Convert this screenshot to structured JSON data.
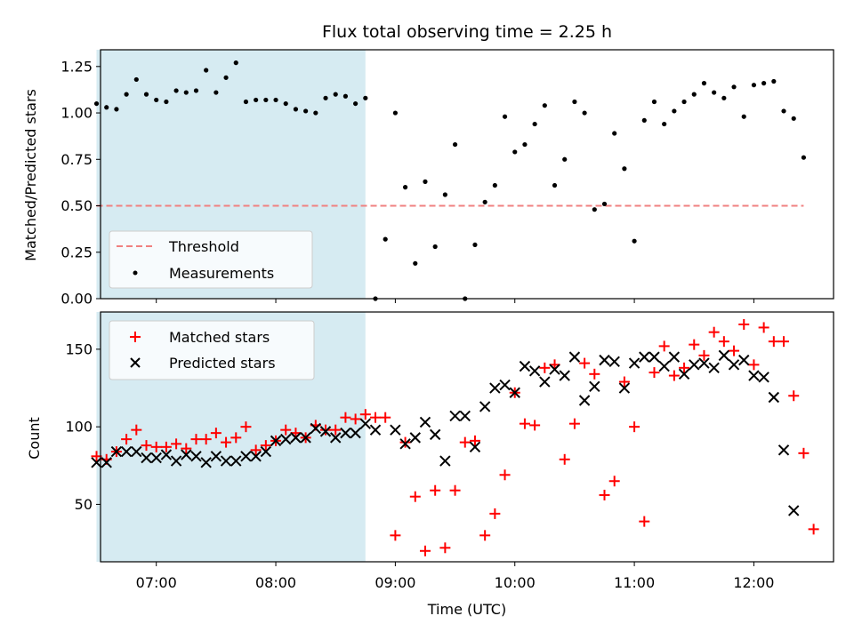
{
  "chart_data": [
    {
      "type": "scatter",
      "title": "Flux total observing time = 2.25 h",
      "xlabel": "",
      "ylabel": "Matched/Predicted stars",
      "xlim": [
        "06:32",
        "12:40"
      ],
      "ylim": [
        0,
        1.34
      ],
      "yticks": [
        "0.00",
        "0.25",
        "0.50",
        "0.75",
        "1.00",
        "1.25"
      ],
      "shaded_region": [
        "06:30",
        "08:45"
      ],
      "threshold": 0.5,
      "legend_position": "lower-left",
      "legend": [
        {
          "label": "Threshold",
          "style": "dashed-line",
          "color": "#f08080"
        },
        {
          "label": "Measurements",
          "style": "dot",
          "color": "#000000"
        }
      ],
      "series": [
        {
          "name": "Measurements",
          "points": [
            [
              "06:30",
              1.05
            ],
            [
              "06:35",
              1.03
            ],
            [
              "06:40",
              1.02
            ],
            [
              "06:45",
              1.1
            ],
            [
              "06:50",
              1.18
            ],
            [
              "06:55",
              1.1
            ],
            [
              "07:00",
              1.07
            ],
            [
              "07:05",
              1.06
            ],
            [
              "07:10",
              1.12
            ],
            [
              "07:15",
              1.11
            ],
            [
              "07:20",
              1.12
            ],
            [
              "07:25",
              1.23
            ],
            [
              "07:30",
              1.11
            ],
            [
              "07:35",
              1.19
            ],
            [
              "07:40",
              1.27
            ],
            [
              "07:45",
              1.06
            ],
            [
              "07:50",
              1.07
            ],
            [
              "07:55",
              1.07
            ],
            [
              "08:00",
              1.07
            ],
            [
              "08:05",
              1.05
            ],
            [
              "08:10",
              1.02
            ],
            [
              "08:15",
              1.01
            ],
            [
              "08:20",
              1.0
            ],
            [
              "08:25",
              1.08
            ],
            [
              "08:30",
              1.1
            ],
            [
              "08:35",
              1.09
            ],
            [
              "08:40",
              1.05
            ],
            [
              "08:45",
              1.08
            ],
            [
              "08:50",
              0.0
            ],
            [
              "08:55",
              0.32
            ],
            [
              "09:00",
              1.0
            ],
            [
              "09:05",
              0.6
            ],
            [
              "09:10",
              0.19
            ],
            [
              "09:15",
              0.63
            ],
            [
              "09:20",
              0.28
            ],
            [
              "09:25",
              0.56
            ],
            [
              "09:30",
              0.83
            ],
            [
              "09:35",
              0.0
            ],
            [
              "09:40",
              0.29
            ],
            [
              "09:45",
              0.52
            ],
            [
              "09:50",
              0.61
            ],
            [
              "09:55",
              0.98
            ],
            [
              "10:00",
              0.79
            ],
            [
              "10:05",
              0.83
            ],
            [
              "10:10",
              0.94
            ],
            [
              "10:15",
              1.04
            ],
            [
              "10:20",
              0.61
            ],
            [
              "10:25",
              0.75
            ],
            [
              "10:30",
              1.06
            ],
            [
              "10:35",
              1.0
            ],
            [
              "10:40",
              0.48
            ],
            [
              "10:45",
              0.51
            ],
            [
              "10:50",
              0.89
            ],
            [
              "10:55",
              0.7
            ],
            [
              "11:00",
              0.31
            ],
            [
              "11:05",
              0.96
            ],
            [
              "11:10",
              1.06
            ],
            [
              "11:15",
              0.94
            ],
            [
              "11:20",
              1.01
            ],
            [
              "11:25",
              1.06
            ],
            [
              "11:30",
              1.1
            ],
            [
              "11:35",
              1.16
            ],
            [
              "11:40",
              1.11
            ],
            [
              "11:45",
              1.08
            ],
            [
              "11:50",
              1.14
            ],
            [
              "11:55",
              0.98
            ],
            [
              "12:00",
              1.15
            ],
            [
              "12:05",
              1.16
            ],
            [
              "12:10",
              1.17
            ],
            [
              "12:15",
              1.01
            ],
            [
              "12:20",
              0.97
            ],
            [
              "12:25",
              0.76
            ]
          ]
        }
      ]
    },
    {
      "type": "scatter",
      "title": "",
      "xlabel": "Time (UTC)",
      "ylabel": "Count",
      "xlim": [
        "06:32",
        "12:40"
      ],
      "ylim": [
        13,
        174
      ],
      "xticks": [
        "07:00",
        "08:00",
        "09:00",
        "10:00",
        "11:00",
        "12:00"
      ],
      "yticks": [
        "50",
        "100",
        "150"
      ],
      "shaded_region": [
        "06:30",
        "08:45"
      ],
      "legend_position": "upper-left",
      "legend": [
        {
          "label": "Matched stars",
          "marker": "plus",
          "color": "#ff0000"
        },
        {
          "label": "Predicted stars",
          "marker": "x",
          "color": "#000000"
        }
      ],
      "series": [
        {
          "name": "Matched stars",
          "marker": "plus",
          "color": "#ff0000",
          "points": [
            [
              "06:30",
              81
            ],
            [
              "06:35",
              79
            ],
            [
              "06:40",
              84
            ],
            [
              "06:45",
              92
            ],
            [
              "06:50",
              98
            ],
            [
              "06:55",
              88
            ],
            [
              "07:00",
              87
            ],
            [
              "07:05",
              87
            ],
            [
              "07:10",
              89
            ],
            [
              "07:15",
              86
            ],
            [
              "07:20",
              92
            ],
            [
              "07:25",
              92
            ],
            [
              "07:30",
              96
            ],
            [
              "07:35",
              90
            ],
            [
              "07:40",
              93
            ],
            [
              "07:45",
              100
            ],
            [
              "07:50",
              85
            ],
            [
              "07:55",
              88
            ],
            [
              "08:00",
              91
            ],
            [
              "08:05",
              98
            ],
            [
              "08:10",
              96
            ],
            [
              "08:15",
              93
            ],
            [
              "08:20",
              101
            ],
            [
              "08:25",
              98
            ],
            [
              "08:30",
              98
            ],
            [
              "08:35",
              106
            ],
            [
              "08:40",
              105
            ],
            [
              "08:45",
              108
            ],
            [
              "08:50",
              106
            ],
            [
              "08:55",
              106
            ],
            [
              "09:00",
              30
            ],
            [
              "09:05",
              90
            ],
            [
              "09:10",
              55
            ],
            [
              "09:15",
              20
            ],
            [
              "09:20",
              59
            ],
            [
              "09:25",
              22
            ],
            [
              "09:30",
              59
            ],
            [
              "09:35",
              90
            ],
            [
              "09:40",
              91
            ],
            [
              "09:45",
              30
            ],
            [
              "09:50",
              44
            ],
            [
              "09:55",
              69
            ],
            [
              "10:00",
              122
            ],
            [
              "10:05",
              102
            ],
            [
              "10:10",
              101
            ],
            [
              "10:15",
              138
            ],
            [
              "10:20",
              140
            ],
            [
              "10:25",
              79
            ],
            [
              "10:30",
              102
            ],
            [
              "10:35",
              141
            ],
            [
              "10:40",
              134
            ],
            [
              "10:45",
              56
            ],
            [
              "10:50",
              65
            ],
            [
              "10:55",
              129
            ],
            [
              "11:00",
              100
            ],
            [
              "11:05",
              39
            ],
            [
              "11:10",
              135
            ],
            [
              "11:15",
              152
            ],
            [
              "11:20",
              133
            ],
            [
              "11:25",
              138
            ],
            [
              "11:30",
              153
            ],
            [
              "11:35",
              146
            ],
            [
              "11:40",
              161
            ],
            [
              "11:45",
              155
            ],
            [
              "11:50",
              149
            ],
            [
              "11:55",
              166
            ],
            [
              "12:00",
              140
            ],
            [
              "12:05",
              164
            ],
            [
              "12:10",
              155
            ],
            [
              "12:15",
              155
            ],
            [
              "12:20",
              120
            ],
            [
              "12:25",
              83
            ],
            [
              "12:30",
              34
            ]
          ]
        },
        {
          "name": "Predicted stars",
          "marker": "x",
          "color": "#000000",
          "points": [
            [
              "06:30",
              77
            ],
            [
              "06:35",
              77
            ],
            [
              "06:40",
              84
            ],
            [
              "06:45",
              84
            ],
            [
              "06:50",
              84
            ],
            [
              "06:55",
              80
            ],
            [
              "07:00",
              80
            ],
            [
              "07:05",
              82
            ],
            [
              "07:10",
              78
            ],
            [
              "07:15",
              82
            ],
            [
              "07:20",
              81
            ],
            [
              "07:25",
              77
            ],
            [
              "07:30",
              81
            ],
            [
              "07:35",
              78
            ],
            [
              "07:40",
              78
            ],
            [
              "07:45",
              81
            ],
            [
              "07:50",
              81
            ],
            [
              "07:55",
              84
            ],
            [
              "08:00",
              91
            ],
            [
              "08:05",
              92
            ],
            [
              "08:10",
              93
            ],
            [
              "08:15",
              93
            ],
            [
              "08:20",
              99
            ],
            [
              "08:25",
              97
            ],
            [
              "08:30",
              93
            ],
            [
              "08:35",
              96
            ],
            [
              "08:40",
              96
            ],
            [
              "08:45",
              102
            ],
            [
              "08:50",
              98
            ],
            [
              "09:00",
              98
            ],
            [
              "09:05",
              89
            ],
            [
              "09:10",
              93
            ],
            [
              "09:15",
              103
            ],
            [
              "09:20",
              95
            ],
            [
              "09:25",
              78
            ],
            [
              "09:30",
              107
            ],
            [
              "09:35",
              107
            ],
            [
              "09:40",
              87
            ],
            [
              "09:45",
              113
            ],
            [
              "09:50",
              125
            ],
            [
              "09:55",
              127
            ],
            [
              "10:00",
              122
            ],
            [
              "10:05",
              139
            ],
            [
              "10:10",
              136
            ],
            [
              "10:15",
              129
            ],
            [
              "10:20",
              137
            ],
            [
              "10:25",
              133
            ],
            [
              "10:30",
              145
            ],
            [
              "10:35",
              117
            ],
            [
              "10:40",
              126
            ],
            [
              "10:45",
              143
            ],
            [
              "10:50",
              142
            ],
            [
              "10:55",
              125
            ],
            [
              "11:00",
              141
            ],
            [
              "11:05",
              145
            ],
            [
              "11:10",
              145
            ],
            [
              "11:15",
              139
            ],
            [
              "11:20",
              145
            ],
            [
              "11:25",
              134
            ],
            [
              "11:30",
              140
            ],
            [
              "11:35",
              141
            ],
            [
              "11:40",
              138
            ],
            [
              "11:45",
              146
            ],
            [
              "11:50",
              140
            ],
            [
              "11:55",
              143
            ],
            [
              "12:00",
              133
            ],
            [
              "12:05",
              132
            ],
            [
              "12:10",
              119
            ],
            [
              "12:15",
              85
            ],
            [
              "12:20",
              46
            ]
          ]
        }
      ]
    }
  ]
}
